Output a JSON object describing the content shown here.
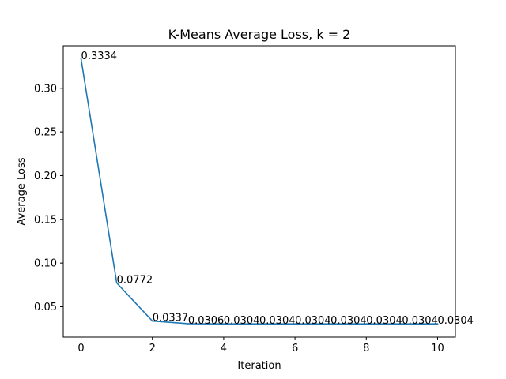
{
  "chart_data": {
    "type": "line",
    "title": "K-Means Average Loss, k = 2",
    "xlabel": "Iteration",
    "ylabel": "Average Loss",
    "x": [
      0,
      1,
      2,
      3,
      4,
      5,
      6,
      7,
      8,
      9,
      10
    ],
    "series": [
      {
        "values": [
          0.3334,
          0.0772,
          0.0337,
          0.0306,
          0.0304,
          0.0304,
          0.0304,
          0.0304,
          0.0304,
          0.0304,
          0.0304
        ],
        "color": "#1f77b4"
      }
    ],
    "data_labels": [
      "0.3334",
      "0.0772",
      "0.0337",
      "0.0306",
      "0.0304",
      "0.0304",
      "0.0304",
      "0.0304",
      "0.0304",
      "0.0304",
      "0.0304"
    ],
    "xlim": [
      -0.5,
      10.5
    ],
    "ylim": [
      0.0152,
      0.3486
    ],
    "xticks": [
      0,
      2,
      4,
      6,
      8,
      10
    ],
    "xtick_labels": [
      "0",
      "2",
      "4",
      "6",
      "8",
      "10"
    ],
    "yticks": [
      0.05,
      0.1,
      0.15,
      0.2,
      0.25,
      0.3
    ],
    "ytick_labels": [
      "0.05",
      "0.10",
      "0.15",
      "0.20",
      "0.25",
      "0.30"
    ],
    "grid": false,
    "legend": "none"
  }
}
